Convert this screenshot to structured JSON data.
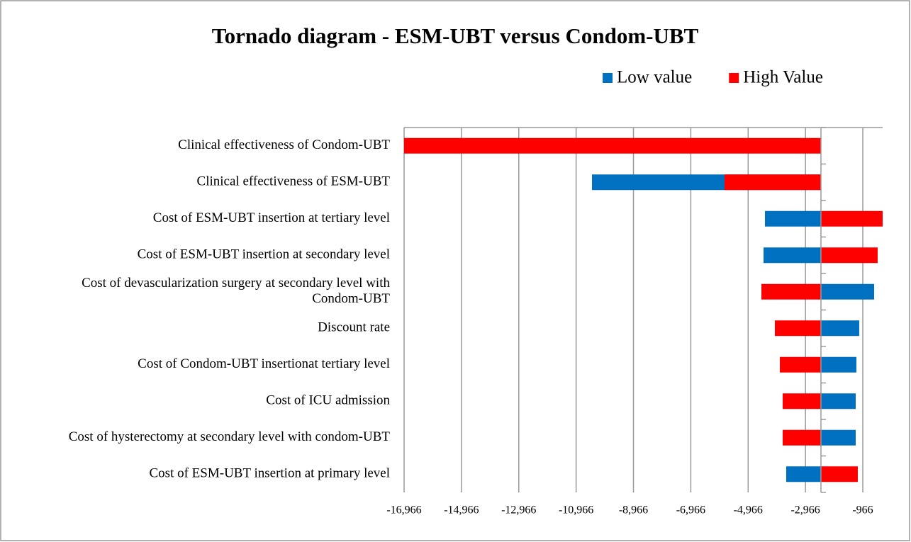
{
  "chart_data": {
    "type": "tornado",
    "title": "Tornado diagram - ESM-UBT versus Condom-UBT",
    "categories": [
      "Clinical effectiveness of Condom-UBT",
      "Clinical effectiveness of ESM-UBT",
      "Cost of ESM-UBT insertion at tertiary level",
      "Cost of ESM-UBT insertion at secondary level",
      "Cost of devascularization surgery at secondary level with Condom-UBT",
      "Discount rate",
      "Cost of Condom-UBT insertionat tertiary level",
      "Cost of ICU admission",
      "Cost of hysterectomy at secondary level with condom-UBT",
      "Cost of ESM-UBT insertion at primary level"
    ],
    "base": -2426,
    "series": [
      {
        "name": "Low value",
        "color": "#0070c0",
        "values": [
          null,
          -10413,
          -4379,
          -4429,
          -571,
          -1091,
          -1190,
          -1214,
          -1214,
          -3638
        ]
      },
      {
        "name": "High Value",
        "color": "#ff0000",
        "values": [
          -16966,
          -5789,
          -274,
          -448,
          -4503,
          -4033,
          -3860,
          -3761,
          -3761,
          -1140
        ]
      }
    ],
    "xlim": [
      -16966,
      -274
    ],
    "xticks": [
      {
        "value": -16966,
        "label": "-16,966"
      },
      {
        "value": -14966,
        "label": "-14,966"
      },
      {
        "value": -12966,
        "label": "-12,966"
      },
      {
        "value": -10966,
        "label": "-10,966"
      },
      {
        "value": -8966,
        "label": "-8,966"
      },
      {
        "value": -6966,
        "label": "-6,966"
      },
      {
        "value": -4966,
        "label": "-4,966"
      },
      {
        "value": -2966,
        "label": "-2,966"
      },
      {
        "value": -966,
        "label": "-966"
      }
    ],
    "grid": true,
    "legend": "top-right"
  }
}
